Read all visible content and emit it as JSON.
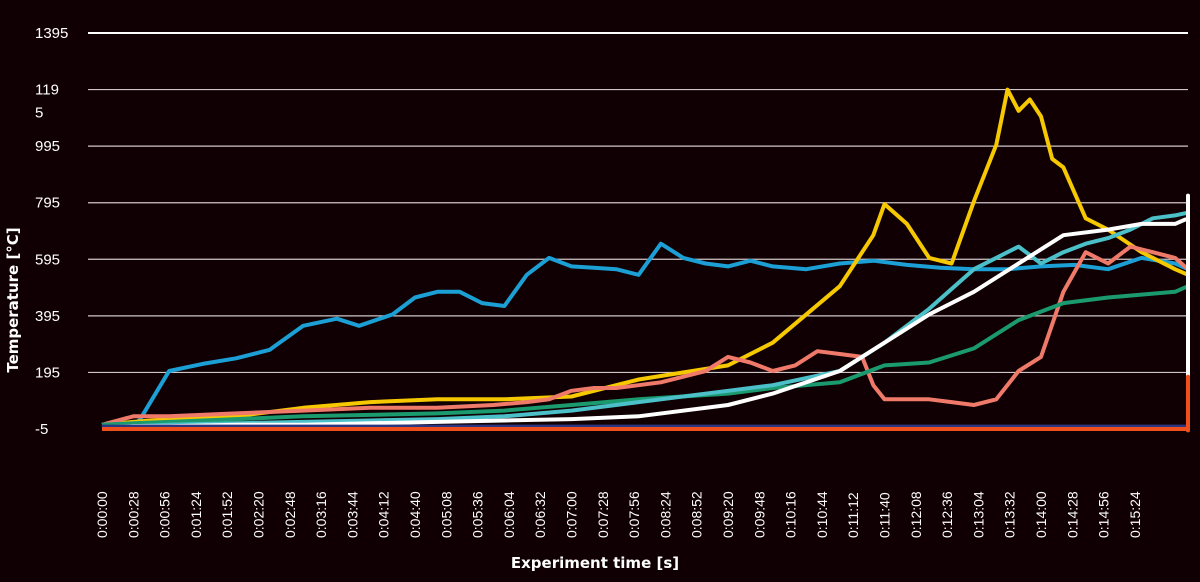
{
  "chart_data": {
    "type": "line",
    "title": "",
    "xlabel": "Experiment time [s]",
    "ylabel": "Temperature [°C]",
    "ylim": [
      -5,
      1395
    ],
    "ytick_labels": [
      "1395",
      "119\n5",
      "995",
      "795",
      "595",
      "395",
      "195",
      "-5"
    ],
    "ytick_values": [
      1395,
      1195,
      995,
      795,
      595,
      395,
      195,
      -5
    ],
    "grid": true,
    "legend": "none",
    "x_ticks": [
      "0:00:00",
      "0:00:28",
      "0:00:56",
      "0:01:24",
      "0:01:52",
      "0:02:20",
      "0:02:48",
      "0:03:16",
      "0:03:44",
      "0:04:12",
      "0:04:40",
      "0:05:08",
      "0:05:36",
      "0:06:04",
      "0:06:32",
      "0:07:00",
      "0:07:28",
      "0:07:56",
      "0:08:24",
      "0:08:52",
      "0:09:20",
      "0:09:48",
      "0:10:16",
      "0:10:44",
      "0:11:12",
      "0:11:40",
      "0:12:08",
      "0:12:36",
      "0:13:04",
      "0:13:32",
      "0:14:00",
      "0:14:28",
      "0:14:56",
      "0:15:24"
    ],
    "x_unit": "seconds",
    "series": [
      {
        "color": "#1c9fd4",
        "x": [
          0,
          28,
          35,
          60,
          90,
          120,
          150,
          180,
          210,
          230,
          260,
          280,
          300,
          320,
          340,
          360,
          380,
          400,
          420,
          440,
          460,
          480,
          500,
          520,
          540,
          560,
          580,
          600,
          630,
          660,
          690,
          720,
          750,
          780,
          810,
          840,
          870,
          900,
          930,
          960,
          990,
          1020,
          1050,
          1080,
          1110,
          1140,
          1170,
          1200,
          1230,
          1260,
          1290,
          1320,
          1350,
          1380,
          1410,
          1440,
          1470,
          1500,
          1530,
          1560,
          1590,
          1620,
          1650,
          1680,
          1710,
          1740,
          1770,
          1800,
          1830,
          1860,
          1890,
          1920,
          1950
        ],
        "values": [
          0,
          0,
          35,
          200,
          225,
          245,
          275,
          360,
          385,
          360,
          400,
          460,
          480,
          480,
          440,
          430,
          540,
          600,
          570,
          565,
          560,
          540,
          650,
          600,
          580,
          570,
          590,
          570,
          560,
          580,
          590,
          575,
          565,
          560,
          560,
          570,
          575,
          560,
          600,
          580,
          560,
          610,
          620,
          570,
          590,
          570,
          580,
          600,
          580,
          600,
          570,
          560,
          620,
          580,
          600,
          560,
          580,
          600,
          620,
          550,
          600,
          580,
          420,
          580,
          200,
          610,
          300,
          200,
          150,
          140,
          130,
          145,
          150
        ]
      },
      {
        "color": "#f5c800",
        "x": [
          0,
          28,
          60,
          120,
          180,
          240,
          300,
          360,
          420,
          480,
          560,
          600,
          660,
          690,
          700,
          720,
          740,
          760,
          780,
          800,
          810,
          820,
          830,
          840,
          850,
          860,
          880,
          900,
          930,
          960,
          990,
          1020,
          1050,
          1080,
          1110,
          1140,
          1170,
          1200,
          1230,
          1260,
          1290,
          1320,
          1350,
          1380,
          1410,
          1440,
          1470,
          1500,
          1530,
          1560,
          1590,
          1620,
          1650,
          1680,
          1710,
          1740,
          1770,
          1800,
          1830,
          1860,
          1890,
          1920,
          1950
        ],
        "values": [
          10,
          20,
          30,
          40,
          70,
          90,
          100,
          100,
          110,
          170,
          220,
          300,
          500,
          680,
          790,
          720,
          600,
          580,
          800,
          1000,
          1195,
          1120,
          1160,
          1100,
          950,
          920,
          740,
          700,
          620,
          560,
          540,
          560,
          580,
          570,
          560,
          600,
          620,
          650,
          680,
          700,
          720,
          740,
          700,
          680,
          720,
          760,
          700,
          700,
          740,
          720,
          700,
          720,
          740,
          720,
          760,
          800,
          780,
          400,
          500,
          360,
          150,
          100,
          100
        ]
      },
      {
        "color": "#f07a6a",
        "x": [
          0,
          28,
          60,
          120,
          180,
          240,
          300,
          350,
          380,
          400,
          420,
          440,
          460,
          480,
          500,
          520,
          540,
          560,
          580,
          600,
          620,
          640,
          660,
          680,
          690,
          700,
          720,
          740,
          760,
          780,
          800,
          820,
          840,
          860,
          880,
          900,
          920,
          940,
          960,
          990,
          1020,
          1050,
          1080,
          1110,
          1140,
          1170,
          1200,
          1230,
          1260,
          1290,
          1320,
          1350,
          1380,
          1410,
          1440,
          1470,
          1500,
          1530,
          1560,
          1590,
          1620,
          1650,
          1680,
          1700,
          1710,
          1720,
          1740,
          1760,
          1780,
          1800,
          1830,
          1860,
          1890,
          1920,
          1950
        ],
        "values": [
          10,
          40,
          40,
          50,
          60,
          70,
          70,
          80,
          90,
          100,
          130,
          140,
          140,
          150,
          160,
          180,
          200,
          250,
          230,
          200,
          220,
          270,
          260,
          250,
          150,
          100,
          100,
          100,
          90,
          80,
          100,
          200,
          250,
          480,
          620,
          580,
          640,
          620,
          600,
          560,
          600,
          650,
          700,
          680,
          700,
          720,
          720,
          740,
          760,
          700,
          700,
          740,
          720,
          760,
          700,
          740,
          740,
          720,
          760,
          700,
          700,
          750,
          700,
          500,
          600,
          200,
          150,
          560,
          520,
          100,
          600,
          120,
          100,
          100,
          100
        ]
      },
      {
        "color": "#1a9a6e",
        "x": [
          0,
          28,
          60,
          120,
          180,
          240,
          300,
          360,
          420,
          480,
          560,
          600,
          660,
          700,
          740,
          780,
          820,
          860,
          900,
          930,
          960,
          990,
          1020,
          1050,
          1080,
          1110,
          1140,
          1170,
          1200,
          1230,
          1260,
          1290,
          1320,
          1350,
          1380,
          1410,
          1440,
          1470,
          1500,
          1530,
          1560,
          1590,
          1620,
          1650,
          1680,
          1710,
          1740,
          1770,
          1800,
          1830,
          1860,
          1890,
          1920,
          1950
        ],
        "values": [
          10,
          15,
          20,
          30,
          40,
          45,
          50,
          60,
          80,
          100,
          120,
          140,
          160,
          220,
          230,
          280,
          380,
          440,
          460,
          470,
          480,
          500,
          520,
          530,
          540,
          560,
          570,
          580,
          600,
          640,
          650,
          660,
          620,
          640,
          660,
          640,
          640,
          620,
          600,
          620,
          600,
          620,
          640,
          660,
          680,
          640,
          600,
          640,
          660,
          640,
          600,
          200,
          160,
          150
        ]
      },
      {
        "color": "#4bc0c8",
        "x": [
          0,
          28,
          60,
          120,
          180,
          240,
          300,
          360,
          420,
          480,
          560,
          600,
          660,
          700,
          740,
          780,
          820,
          840,
          860,
          880,
          900,
          920,
          940,
          960,
          990,
          1020,
          1050,
          1080,
          1110,
          1140,
          1170,
          1200,
          1230,
          1260,
          1290,
          1320,
          1350,
          1380,
          1410,
          1440,
          1470,
          1500,
          1530,
          1560,
          1590,
          1620,
          1650,
          1680,
          1690,
          1700,
          1710,
          1720,
          1740,
          1760,
          1780,
          1800,
          1830,
          1860,
          1890,
          1920,
          1950
        ],
        "values": [
          0,
          5,
          10,
          15,
          20,
          25,
          30,
          40,
          60,
          90,
          130,
          150,
          200,
          300,
          420,
          560,
          640,
          580,
          620,
          650,
          670,
          700,
          740,
          750,
          760,
          760,
          760,
          740,
          720,
          700,
          680,
          650,
          660,
          640,
          620,
          640,
          660,
          650,
          640,
          660,
          620,
          660,
          640,
          640,
          660,
          640,
          620,
          600,
          250,
          620,
          260,
          250,
          620,
          600,
          250,
          620,
          100,
          90,
          100,
          100,
          100
        ]
      },
      {
        "color": "#ffffff",
        "x": [
          0,
          28,
          60,
          120,
          180,
          240,
          300,
          360,
          420,
          480,
          560,
          600,
          660,
          700,
          740,
          780,
          820,
          860,
          900,
          930,
          960,
          990,
          1020,
          1050,
          1080,
          1110,
          1140,
          1170,
          1200,
          1230,
          1260,
          1290,
          1320,
          1350,
          1380,
          1410,
          1440,
          1470,
          1500,
          1530,
          1560,
          1590,
          1620,
          1650,
          1680,
          1700,
          1710,
          1720,
          1740,
          1760,
          1780,
          1800,
          1830,
          1860,
          1890,
          1920,
          1950
        ],
        "values": [
          0,
          5,
          5,
          10,
          10,
          15,
          20,
          25,
          30,
          40,
          80,
          120,
          200,
          300,
          400,
          480,
          580,
          680,
          700,
          720,
          720,
          740,
          780,
          800,
          760,
          720,
          680,
          700,
          700,
          720,
          740,
          760,
          740,
          760,
          720,
          780,
          740,
          760,
          700,
          740,
          760,
          740,
          780,
          760,
          820,
          700,
          300,
          100,
          420,
          480,
          300,
          100,
          100,
          100,
          100,
          100,
          100
        ]
      },
      {
        "color": "#2b3680",
        "x": [
          0,
          1950
        ],
        "values": [
          0,
          0
        ]
      },
      {
        "color": "#ee4f1d",
        "x": [
          0,
          100,
          200,
          400,
          600,
          800,
          1000,
          1200,
          1400,
          1450,
          1480,
          1500,
          1520,
          1550,
          1600,
          1650,
          1680,
          1700,
          1710,
          1720,
          1740,
          1760,
          1780,
          1800,
          1830,
          1860,
          1890,
          1920,
          1950
        ],
        "values": [
          -5,
          -5,
          -5,
          -5,
          -5,
          -5,
          -5,
          -5,
          -5,
          -5,
          -5,
          -5,
          -5,
          -5,
          0,
          -5,
          -5,
          0,
          180,
          40,
          -5,
          -5,
          0,
          -10,
          -5,
          -10,
          -5,
          -10,
          -5
        ]
      }
    ]
  }
}
